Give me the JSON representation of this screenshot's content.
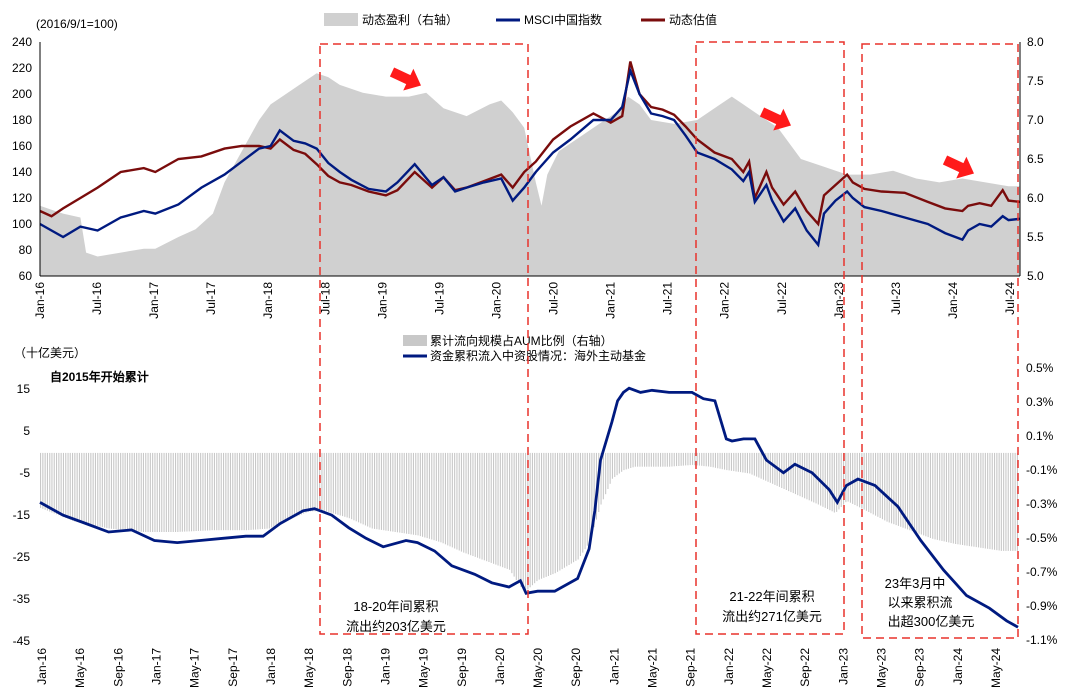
{
  "colors": {
    "earnings_fill": "#d0d0d0",
    "msci_line": "#001a80",
    "valuation_line": "#7a0c0c",
    "flow_line": "#001a80",
    "flow_bars": "#c8c8c8",
    "highlight": "#e8322c",
    "arrow": "#ff1a1a"
  },
  "chart_data": [
    {
      "type": "line",
      "title": "",
      "index_note": "(2016/9/1=100)",
      "x_tick_labels": [
        "Jan-16",
        "Jul-16",
        "Jan-17",
        "Jul-17",
        "Jan-18",
        "Jul-18",
        "Jan-19",
        "Jul-19",
        "Jan-20",
        "Jul-20",
        "Jan-21",
        "Jul-21",
        "Jan-22",
        "Jul-22",
        "Jan-23",
        "Jul-23",
        "Jan-24",
        "Jul-24"
      ],
      "x_range": [
        2016.0,
        2024.5
      ],
      "y_left": {
        "range": [
          60,
          240
        ],
        "ticks": [
          "240",
          "220",
          "200",
          "180",
          "160",
          "140",
          "120",
          "100",
          "80",
          "60"
        ]
      },
      "y_right": {
        "range": [
          5.0,
          8.0
        ],
        "ticks": [
          "8.0",
          "7.5",
          "7.0",
          "6.5",
          "6.0",
          "5.5",
          "5.0"
        ]
      },
      "legend": [
        "动态盈利（右轴）",
        "MSCI中国指数",
        "动态估值"
      ],
      "series": [
        {
          "name": "动态盈利（右轴）",
          "style": "area",
          "axis": "right",
          "x": [
            2016.0,
            2016.1,
            2016.2,
            2016.35,
            2016.4,
            2016.5,
            2016.7,
            2016.9,
            2017.0,
            2017.2,
            2017.35,
            2017.5,
            2017.6,
            2017.75,
            2017.9,
            2018.0,
            2018.1,
            2018.25,
            2018.4,
            2018.5,
            2018.6,
            2018.8,
            2019.0,
            2019.2,
            2019.35,
            2019.5,
            2019.7,
            2019.9,
            2020.0,
            2020.1,
            2020.2,
            2020.3,
            2020.35,
            2020.4,
            2020.5,
            2020.7,
            2020.9,
            2021.0,
            2021.1,
            2021.2,
            2021.3,
            2021.5,
            2021.7,
            2021.9,
            2022.0,
            2022.1,
            2022.2,
            2022.3,
            2022.4,
            2022.5,
            2022.6,
            2022.8,
            2023.0,
            2023.2,
            2023.4,
            2023.6,
            2023.8,
            2024.0,
            2024.2,
            2024.4,
            2024.5
          ],
          "values": [
            5.9,
            5.85,
            5.8,
            5.75,
            5.3,
            5.25,
            5.3,
            5.35,
            5.35,
            5.5,
            5.6,
            5.8,
            6.2,
            6.6,
            7.0,
            7.2,
            7.3,
            7.45,
            7.6,
            7.55,
            7.45,
            7.35,
            7.3,
            7.3,
            7.35,
            7.15,
            7.05,
            7.2,
            7.25,
            7.1,
            6.9,
            6.2,
            5.9,
            6.3,
            6.6,
            6.8,
            7.0,
            7.1,
            7.3,
            7.2,
            7.0,
            6.95,
            7.0,
            7.2,
            7.3,
            7.2,
            7.1,
            7.0,
            6.9,
            6.7,
            6.5,
            6.4,
            6.3,
            6.3,
            6.35,
            6.25,
            6.2,
            6.25,
            6.2,
            6.15,
            6.15
          ]
        },
        {
          "name": "MSCI中国指数",
          "style": "line",
          "axis": "left",
          "x": [
            2016.0,
            2016.1,
            2016.2,
            2016.35,
            2016.5,
            2016.7,
            2016.9,
            2017.0,
            2017.2,
            2017.4,
            2017.6,
            2017.75,
            2017.9,
            2018.0,
            2018.08,
            2018.2,
            2018.3,
            2018.4,
            2018.5,
            2018.6,
            2018.7,
            2018.85,
            2019.0,
            2019.1,
            2019.25,
            2019.4,
            2019.5,
            2019.6,
            2019.7,
            2019.85,
            2020.0,
            2020.1,
            2020.2,
            2020.3,
            2020.45,
            2020.6,
            2020.8,
            2020.95,
            2021.05,
            2021.12,
            2021.2,
            2021.3,
            2021.4,
            2021.5,
            2021.6,
            2021.7,
            2021.85,
            2022.0,
            2022.1,
            2022.15,
            2022.2,
            2022.3,
            2022.35,
            2022.45,
            2022.55,
            2022.65,
            2022.75,
            2022.8,
            2022.9,
            2023.0,
            2023.05,
            2023.15,
            2023.3,
            2023.5,
            2023.7,
            2023.85,
            2024.0,
            2024.05,
            2024.15,
            2024.25,
            2024.35,
            2024.4,
            2024.5
          ],
          "values": [
            100,
            95,
            90,
            98,
            95,
            105,
            110,
            108,
            115,
            128,
            138,
            148,
            158,
            160,
            172,
            164,
            162,
            158,
            147,
            140,
            134,
            127,
            125,
            132,
            146,
            130,
            136,
            125,
            128,
            132,
            135,
            118,
            128,
            140,
            155,
            165,
            180,
            180,
            190,
            218,
            200,
            185,
            183,
            180,
            168,
            155,
            150,
            142,
            133,
            140,
            117,
            130,
            118,
            102,
            112,
            95,
            84,
            108,
            118,
            125,
            120,
            113,
            110,
            105,
            100,
            93,
            88,
            95,
            100,
            98,
            106,
            103,
            104
          ]
        },
        {
          "name": "动态估值",
          "style": "line",
          "axis": "left",
          "x": [
            2016.0,
            2016.1,
            2016.2,
            2016.35,
            2016.5,
            2016.7,
            2016.9,
            2017.0,
            2017.2,
            2017.4,
            2017.6,
            2017.75,
            2017.9,
            2018.0,
            2018.08,
            2018.2,
            2018.3,
            2018.4,
            2018.5,
            2018.6,
            2018.7,
            2018.85,
            2019.0,
            2019.1,
            2019.25,
            2019.4,
            2019.5,
            2019.6,
            2019.7,
            2019.85,
            2020.0,
            2020.1,
            2020.2,
            2020.3,
            2020.45,
            2020.6,
            2020.8,
            2020.95,
            2021.05,
            2021.12,
            2021.2,
            2021.3,
            2021.4,
            2021.5,
            2021.6,
            2021.7,
            2021.85,
            2022.0,
            2022.1,
            2022.15,
            2022.2,
            2022.3,
            2022.35,
            2022.45,
            2022.55,
            2022.65,
            2022.75,
            2022.8,
            2022.9,
            2023.0,
            2023.05,
            2023.15,
            2023.3,
            2023.5,
            2023.7,
            2023.85,
            2024.0,
            2024.05,
            2024.15,
            2024.25,
            2024.35,
            2024.4,
            2024.5
          ],
          "values": [
            110,
            106,
            112,
            120,
            128,
            140,
            143,
            140,
            150,
            152,
            158,
            160,
            160,
            158,
            165,
            157,
            154,
            146,
            137,
            132,
            130,
            125,
            122,
            126,
            140,
            128,
            136,
            126,
            128,
            133,
            138,
            128,
            140,
            148,
            165,
            175,
            185,
            178,
            183,
            225,
            200,
            190,
            188,
            184,
            175,
            165,
            155,
            150,
            140,
            148,
            120,
            140,
            128,
            115,
            125,
            110,
            100,
            122,
            130,
            138,
            132,
            127,
            125,
            124,
            117,
            112,
            110,
            114,
            116,
            114,
            126,
            118,
            117
          ]
        }
      ],
      "annotations": []
    },
    {
      "type": "bar+line",
      "unit_label": "（十亿美元）",
      "subtitle": "自2015年开始累计",
      "x_tick_labels": [
        "Jan-16",
        "May-16",
        "Sep-16",
        "Jan-17",
        "May-17",
        "Sep-17",
        "Jan-18",
        "May-18",
        "Sep-18",
        "Jan-19",
        "May-19",
        "Sep-19",
        "Jan-20",
        "May-20",
        "Sep-20",
        "Jan-21",
        "May-21",
        "Sep-21",
        "Jan-22",
        "May-22",
        "Sep-22",
        "Jan-23",
        "May-23",
        "Sep-23",
        "Jan-24",
        "May-24"
      ],
      "x_range": [
        2016.0,
        2024.55
      ],
      "y_left": {
        "range": [
          -45,
          20
        ],
        "ticks": [
          "15",
          "5",
          "-5",
          "-15",
          "-25",
          "-35",
          "-45"
        ]
      },
      "y_right": {
        "range": [
          -1.1,
          0.5
        ],
        "ticks": [
          "0.5%",
          "0.3%",
          "0.1%",
          "-0.1%",
          "-0.3%",
          "-0.5%",
          "-0.7%",
          "-0.9%",
          "-1.1%"
        ]
      },
      "legend": [
        "累计流向规模占AUM比例（右轴）",
        "资金累积流入中资股情况：海外主动基金"
      ],
      "series": [
        {
          "name": "累计流向规模占AUM比例（右轴）",
          "style": "bar",
          "axis": "right",
          "x": [
            2016.0,
            2016.3,
            2016.6,
            2016.9,
            2017.2,
            2017.5,
            2017.8,
            2018.0,
            2018.2,
            2018.35,
            2018.5,
            2018.7,
            2018.9,
            2019.1,
            2019.3,
            2019.5,
            2019.7,
            2019.9,
            2020.1,
            2020.2,
            2020.25,
            2020.35,
            2020.5,
            2020.7,
            2020.8,
            2020.9,
            2021.0,
            2021.1,
            2021.2,
            2021.3,
            2021.5,
            2021.7,
            2021.85,
            2022.0,
            2022.2,
            2022.4,
            2022.6,
            2022.8,
            2022.95,
            2023.05,
            2023.2,
            2023.4,
            2023.6,
            2023.8,
            2024.0,
            2024.2,
            2024.4,
            2024.55
          ],
          "values": [
            -0.32,
            -0.4,
            -0.44,
            -0.46,
            -0.46,
            -0.45,
            -0.45,
            -0.44,
            -0.38,
            -0.34,
            -0.34,
            -0.38,
            -0.44,
            -0.46,
            -0.48,
            -0.52,
            -0.58,
            -0.63,
            -0.68,
            -0.78,
            -0.8,
            -0.74,
            -0.7,
            -0.62,
            -0.52,
            -0.3,
            -0.15,
            -0.1,
            -0.08,
            -0.08,
            -0.08,
            -0.07,
            -0.08,
            -0.1,
            -0.12,
            -0.18,
            -0.24,
            -0.3,
            -0.35,
            -0.28,
            -0.33,
            -0.4,
            -0.45,
            -0.5,
            -0.53,
            -0.55,
            -0.57,
            -0.57
          ]
        },
        {
          "name": "资金累积流入中资股情况：海外主动基金",
          "style": "line",
          "axis": "left",
          "x": [
            2016.0,
            2016.2,
            2016.4,
            2016.6,
            2016.8,
            2017.0,
            2017.2,
            2017.4,
            2017.6,
            2017.8,
            2017.95,
            2018.1,
            2018.2,
            2018.3,
            2018.4,
            2018.55,
            2018.7,
            2018.85,
            2019.0,
            2019.2,
            2019.3,
            2019.45,
            2019.6,
            2019.8,
            2019.95,
            2020.1,
            2020.2,
            2020.25,
            2020.35,
            2020.5,
            2020.7,
            2020.8,
            2020.85,
            2020.9,
            2021.0,
            2021.05,
            2021.1,
            2021.15,
            2021.25,
            2021.35,
            2021.5,
            2021.7,
            2021.8,
            2021.9,
            2022.0,
            2022.05,
            2022.15,
            2022.25,
            2022.35,
            2022.5,
            2022.6,
            2022.75,
            2022.9,
            2022.97,
            2023.05,
            2023.15,
            2023.3,
            2023.5,
            2023.7,
            2023.9,
            2024.0,
            2024.1,
            2024.3,
            2024.45,
            2024.55
          ],
          "values": [
            -12,
            -15,
            -17,
            -19,
            -18.5,
            -21,
            -21.5,
            -21,
            -20.5,
            -20,
            -20,
            -17,
            -15.5,
            -14,
            -13.5,
            -15,
            -18,
            -20.5,
            -22.5,
            -21,
            -21.5,
            -23.5,
            -27,
            -29,
            -31,
            -32,
            -30.5,
            -33.5,
            -33,
            -33,
            -30,
            -23,
            -14,
            -2,
            7,
            12,
            14,
            15,
            14,
            14.5,
            14,
            14,
            12.5,
            12,
            3,
            2.5,
            3,
            3,
            -2,
            -5,
            -3,
            -5,
            -9,
            -12,
            -8,
            -6.5,
            -8,
            -13,
            -21,
            -28,
            -31,
            -34,
            -37,
            -40,
            -41.5
          ]
        }
      ],
      "annotations": [
        "18-20年间累积",
        "流出约203亿美元",
        "21-22年间累积",
        "流出约271亿美元",
        "23年3月中",
        "以来累积流",
        "出超300亿美元"
      ]
    }
  ]
}
